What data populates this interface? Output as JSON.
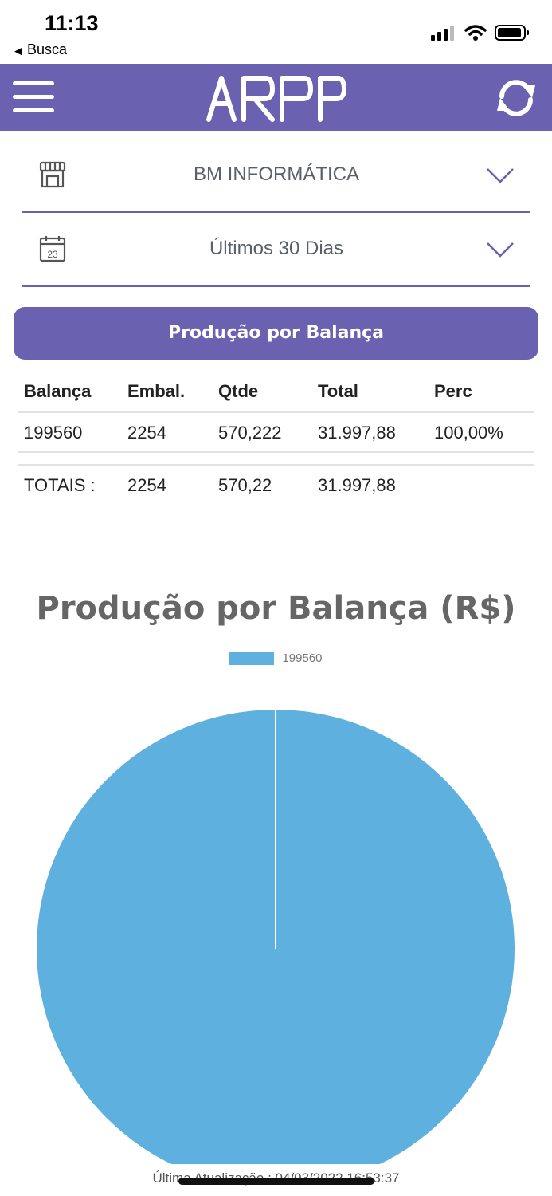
{
  "status_bar": {
    "time": "11:13",
    "back_label": "Busca"
  },
  "header": {
    "logo_text": "ARPP",
    "menu_icon": "hamburger-menu-icon",
    "refresh_icon": "refresh-icon",
    "color": "#6a61b0"
  },
  "filters": {
    "company": {
      "icon": "store-icon",
      "value": "BM INFORMÁTICA"
    },
    "period": {
      "icon": "calendar-icon",
      "calendar_day": "23",
      "value": "Últimos 30 Dias"
    }
  },
  "section": {
    "title": "Produção por Balança"
  },
  "table": {
    "headers": [
      "Balança",
      "Embal.",
      "Qtde",
      "Total",
      "Perc"
    ],
    "rows": [
      [
        "199560",
        "2254",
        "570,222",
        "31.997,88",
        "100,00%"
      ]
    ],
    "totals": [
      "TOTAIS :",
      "2254",
      "570,22",
      "31.997,88",
      ""
    ]
  },
  "chart_data": {
    "type": "pie",
    "title": "Produção por Balança (R$)",
    "legend_position": "top",
    "series": [
      {
        "name": "199560",
        "value": 31997.88,
        "percent": 100.0,
        "color": "#5eb0de"
      }
    ]
  },
  "footer": {
    "last_update": "Última Atualização : 04/03/2022 16:53:37"
  }
}
